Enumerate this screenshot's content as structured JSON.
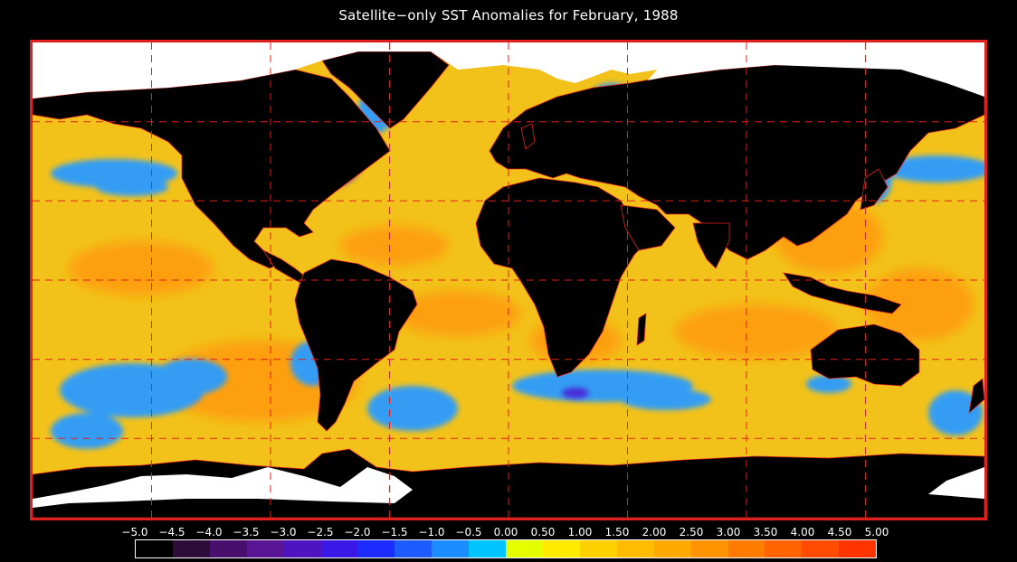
{
  "title": "Satellite−only SST Anomalies for February, 1988",
  "colorbar": {
    "ticks": [
      "−5.0",
      "−4.5",
      "−4.0",
      "−3.5",
      "−3.0",
      "−2.5",
      "−2.0",
      "−1.5",
      "−1.0",
      "−0.5",
      "0.00",
      "0.50",
      "1.00",
      "1.50",
      "2.00",
      "2.50",
      "3.00",
      "3.50",
      "4.00",
      "4.50",
      "5.00"
    ],
    "colors": [
      "#000000",
      "#2e0c3a",
      "#48106c",
      "#5a1496",
      "#4e14c0",
      "#3a18e6",
      "#1c2cff",
      "#1c5cff",
      "#1c8cff",
      "#00c4ff",
      "#e4ff00",
      "#ffea00",
      "#ffd000",
      "#ffbc00",
      "#ffa800",
      "#ff9400",
      "#ff7c00",
      "#ff6400",
      "#ff4c00",
      "#ff3400"
    ]
  },
  "map": {
    "projection": "equirectangular",
    "lon_range": [
      -180,
      180
    ],
    "lat_range": [
      -90,
      90
    ],
    "grid_lon_step": 30,
    "grid_lat_step": 30,
    "colors": {
      "ocean_base": "#f2c21a",
      "warm": "#ff9a10",
      "cool": "#2a9cff",
      "cold": "#4a2ad8",
      "land": "#000000",
      "ice": "#ffffff",
      "border": "#e0201c",
      "grid": "#e0201c"
    }
  }
}
